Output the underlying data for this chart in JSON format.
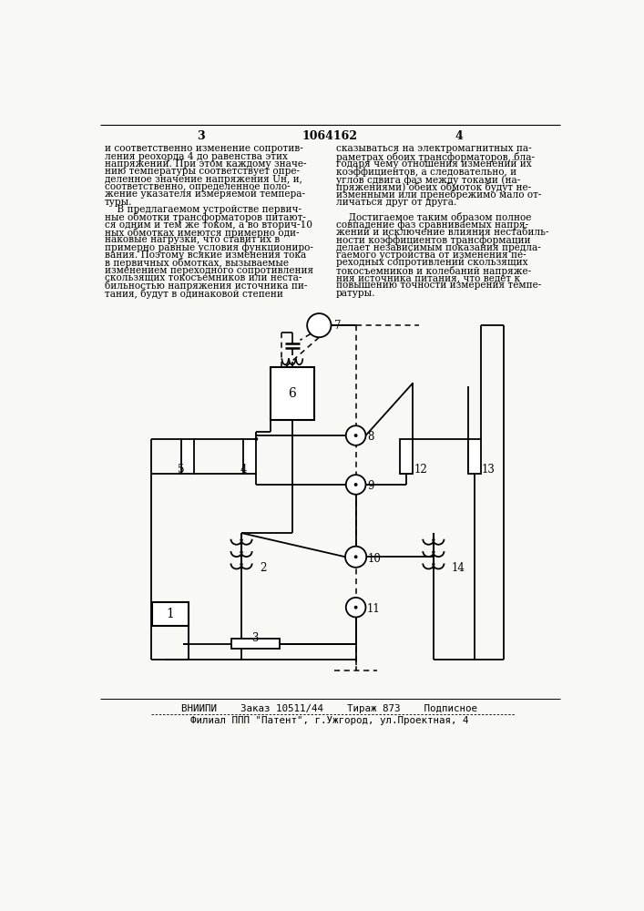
{
  "bg_color": "#f8f8f4",
  "page_number_left": "3",
  "page_number_center": "1064162",
  "page_number_right": "4",
  "footer_line1": "ВНИИПИ    Заказ 10511/44    Тираж 873    Подписное",
  "footer_line2": "Филиал ППП \"Патент\", г.Ужгород, ул.Проектная, 4",
  "text_left": "и соответственно изменение сопротив-\nления реохорда 4 до равенства этих\nнапряжений. При этом каждому значе-\nнию температуры соответствует опре-\nделенное значение напряжения Uн, и,\nсоответственно, определенное поло-\nжение указателя измеряемой темпера-\nтуры.\n    В предлагаемом устройстве первич-\nные обмотки трансформаторов питают-\nся одним и тем же током, а во вторич-10\nных обмотках имеются примерно оди-\nнаковые нагрузки, что ставит их в\nпримерно равные условия функциониро-\nвания. Поэтому всякие изменения тока\nв первичных обмотках, вызываемые\nизменением переходного сопротивления\nскользящих токосъемников или неста-\nбильностью напряжения источника пи-\nтания, будут в одинаковой степени",
  "text_right": "сказываться на электромагнитных па-\nраметрах обоих трансформаторов, бла-\nгодаря чему отношения изменений их\nкоэффициентов, а следовательно, и\nуглов сдвига фаз между токами (на-\nпряжениями) обеих обмоток будут не-\nизменными или пренебрежимо мало от-\nличаться друг от друга.\n\n    Достигаемое таким образом полное\nсовпадение фаз сравниваемых напря-\nжений и исключение влияния нестабиль-\nности коэффициентов трансформации\nделает независимым показания предла-\nгаемого устройства от изменения пе-\nреходных сопротивлений скользящих\nтокосъемников и колебаний напряже-\nния источника питания, что ведет к\nповышению точности измерения темпе-\nратуры."
}
